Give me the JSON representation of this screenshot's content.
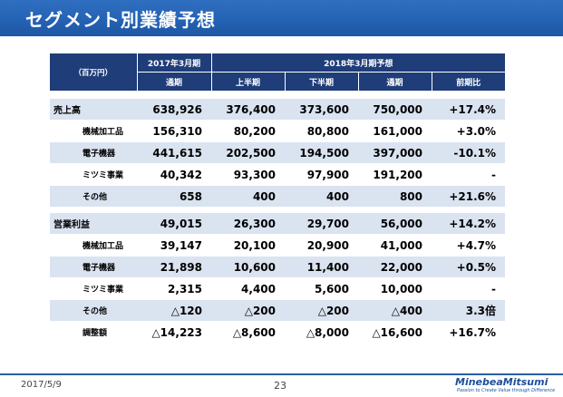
{
  "title": "セグメント別業績予想",
  "table": {
    "unit_label": "（百万円）",
    "fy2017_header": "2017年3月期",
    "fy2018_header": "2018年3月期予想",
    "subheaders": [
      "通期",
      "上半期",
      "下半期",
      "通期",
      "前期比"
    ],
    "rows": [
      {
        "name": "売上高",
        "values": [
          "638,926",
          "376,400",
          "373,600",
          "750,000",
          "+17.4%"
        ]
      },
      {
        "name": "機械加工品",
        "values": [
          "156,310",
          "80,200",
          "80,800",
          "161,000",
          "+3.0%"
        ]
      },
      {
        "name": "電子機器",
        "values": [
          "441,615",
          "202,500",
          "194,500",
          "397,000",
          "-10.1%"
        ]
      },
      {
        "name": "ミツミ事業",
        "values": [
          "40,342",
          "93,300",
          "97,900",
          "191,200",
          "-"
        ]
      },
      {
        "name": "その他",
        "values": [
          "658",
          "400",
          "400",
          "800",
          "+21.6%"
        ]
      },
      {
        "name": "営業利益",
        "values": [
          "49,015",
          "26,300",
          "29,700",
          "56,000",
          "+14.2%"
        ]
      },
      {
        "name": "機械加工品",
        "values": [
          "39,147",
          "20,100",
          "20,900",
          "41,000",
          "+4.7%"
        ]
      },
      {
        "name": "電子機器",
        "values": [
          "21,898",
          "10,600",
          "11,400",
          "22,000",
          "+0.5%"
        ]
      },
      {
        "name": "ミツミ事業",
        "values": [
          "2,315",
          "4,400",
          "5,600",
          "10,000",
          "-"
        ]
      },
      {
        "name": "その他",
        "values": [
          "△120",
          "△200",
          "△200",
          "△400",
          "3.3倍"
        ]
      },
      {
        "name": "調整額",
        "values": [
          "△14,223",
          "△8,600",
          "△8,000",
          "△16,600",
          "+16.7%"
        ]
      }
    ]
  },
  "footer": {
    "date": "2017/5/9",
    "page": "23",
    "logo": "MinebeaMitsumi",
    "tagline": "Passion to Create Value through Difference"
  }
}
